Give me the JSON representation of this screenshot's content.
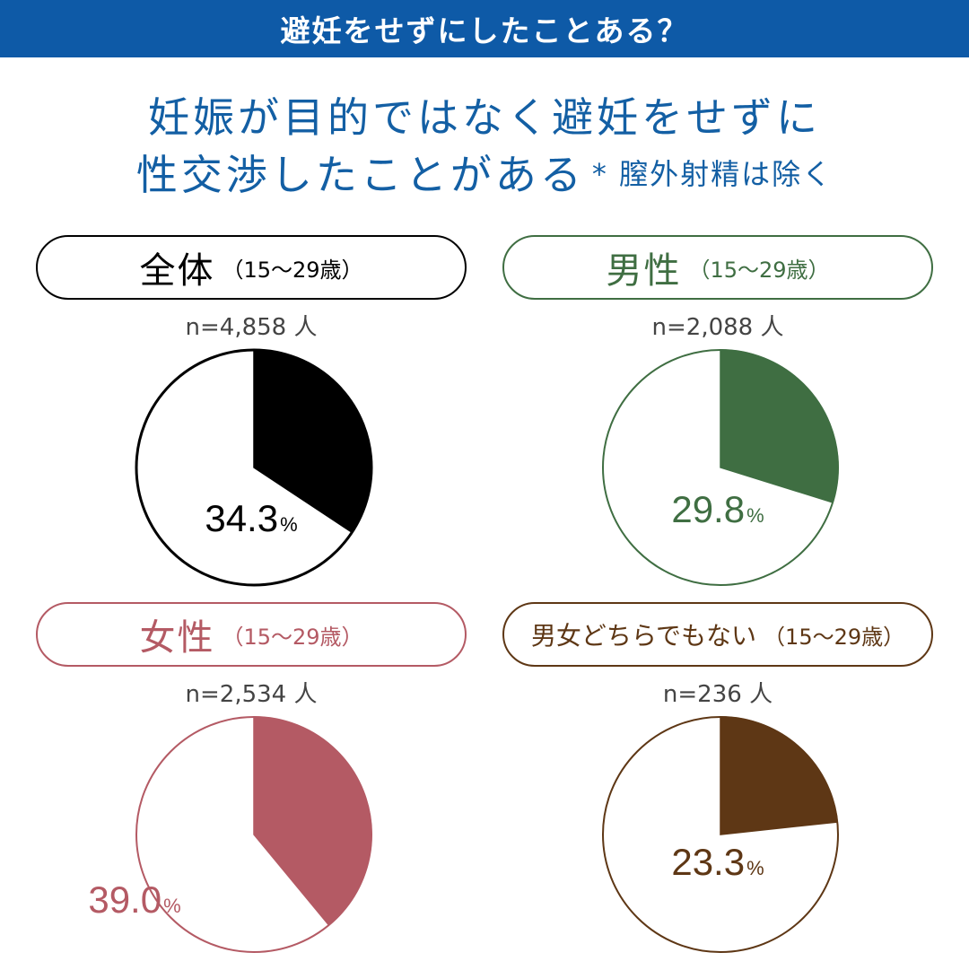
{
  "banner": {
    "title": "避妊をせずにしたことある？"
  },
  "headline": {
    "line1": "妊娠が目的ではなく避妊をせずに",
    "line2": "性交渉したことがある",
    "note": "* 膣外射精は除く"
  },
  "chart_data": [
    {
      "type": "pie",
      "title": "全体",
      "subtitle": "（15〜29歳）",
      "n_label": "n=4,858 人",
      "sample_size": 4858,
      "value": 34.3,
      "unit": "%",
      "color": "#000000"
    },
    {
      "type": "pie",
      "title": "男性",
      "subtitle": "（15〜29歳）",
      "n_label": "n=2,088 人",
      "sample_size": 2088,
      "value": 29.8,
      "unit": "%",
      "color": "#3f6e42"
    },
    {
      "type": "pie",
      "title": "女性",
      "subtitle": "（15〜29歳）",
      "n_label": "n=2,534 人",
      "sample_size": 2534,
      "value": 39.0,
      "unit": "%",
      "color": "#b45a64"
    },
    {
      "type": "pie",
      "title": "男女どちらでもない",
      "subtitle": "（15〜29歳）",
      "n_label": "n=236 人",
      "sample_size": 236,
      "value": 23.3,
      "unit": "%",
      "color": "#5e3715"
    }
  ]
}
